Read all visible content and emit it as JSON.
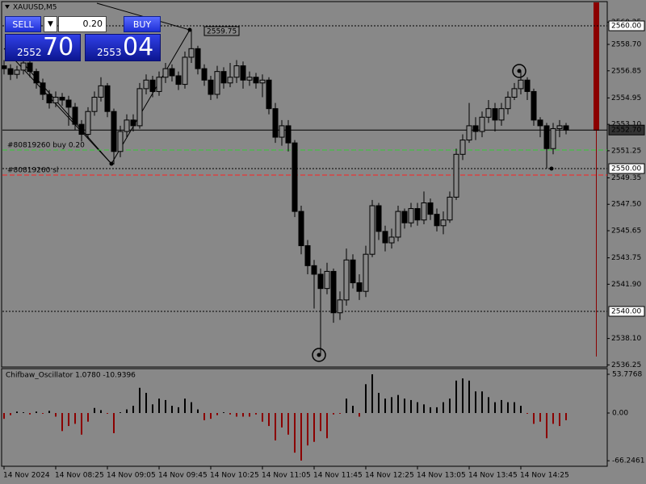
{
  "window": {
    "symbol": "XAUUSD,M5"
  },
  "trade_panel": {
    "sell": "SELL",
    "buy": "BUY",
    "volume": "0.20",
    "bid_main": "2552",
    "bid_pips": "70",
    "ask_main": "2553",
    "ask_pips": "04"
  },
  "chart_data": [
    {
      "type": "candlestick",
      "categories": [
        "14 Nov 2024",
        null,
        null,
        null,
        null,
        null,
        null,
        null,
        "14 Nov 08:25",
        null,
        null,
        null,
        null,
        null,
        null,
        null,
        "14 Nov 09:05",
        null,
        null,
        null,
        null,
        null,
        null,
        null,
        "14 Nov 09:45",
        null,
        null,
        null,
        null,
        null,
        null,
        null,
        "14 Nov 10:25",
        null,
        null,
        null,
        null,
        null,
        null,
        null,
        "14 Nov 11:05",
        null,
        null,
        null,
        null,
        null,
        null,
        null,
        "14 Nov 11:45",
        null,
        null,
        null,
        null,
        null,
        null,
        null,
        "14 Nov 12:25",
        null,
        null,
        null,
        null,
        null,
        null,
        null,
        "14 Nov 13:05",
        null,
        null,
        null,
        null,
        null,
        null,
        null,
        "14 Nov 13:45",
        null,
        null,
        null,
        null,
        null,
        null,
        null,
        "14 Nov 14:25",
        null,
        null,
        null,
        null,
        null,
        null,
        null
      ],
      "open": [
        2557.2,
        2557.0,
        2556.6,
        2556.9,
        2557.4,
        2556.8,
        2556.0,
        2555.2,
        2554.6,
        2555.0,
        2554.8,
        2554.3,
        2553.1,
        2552.4,
        2554.0,
        2555.0,
        2555.8,
        2554.0,
        2551.2,
        2552.6,
        2553.4,
        2553.0,
        2555.6,
        2556.2,
        2555.4,
        2556.4,
        2557.0,
        2556.5,
        2555.9,
        2557.8,
        2558.4,
        2557.0,
        2556.2,
        2555.2,
        2556.8,
        2556.0,
        2556.4,
        2557.2,
        2556.2,
        2556.4,
        2556.0,
        2556.2,
        2554.2,
        2552.2,
        2553.0,
        2551.8,
        2547.0,
        2544.6,
        2543.2,
        2542.6,
        2541.6,
        2542.8,
        2539.9,
        2540.8,
        2543.6,
        2542.0,
        2541.4,
        2544.0,
        2547.4,
        2545.6,
        2544.8,
        2545.2,
        2547.0,
        2546.2,
        2547.2,
        2546.4,
        2547.6,
        2546.8,
        2546.0,
        2546.4,
        2548.0,
        2551.0,
        2552.0,
        2553.0,
        2552.6,
        2553.6,
        2554.2,
        2553.4,
        2554.2,
        2555.0,
        2555.6,
        2556.2,
        2555.4,
        2553.4,
        2553.0,
        2551.4,
        2552.8,
        2553.0
      ],
      "high": [
        2557.6,
        2557.3,
        2557.2,
        2557.8,
        2557.7,
        2557.0,
        2556.3,
        2555.5,
        2555.4,
        2555.3,
        2555.1,
        2554.6,
        2553.4,
        2554.3,
        2555.4,
        2556.4,
        2556.0,
        2554.2,
        2553.0,
        2553.8,
        2553.8,
        2556.0,
        2556.6,
        2556.5,
        2556.8,
        2557.4,
        2557.3,
        2556.8,
        2558.2,
        2559.75,
        2558.6,
        2557.3,
        2556.5,
        2557.2,
        2557.1,
        2557.4,
        2557.6,
        2557.5,
        2556.8,
        2556.7,
        2556.6,
        2556.4,
        2554.6,
        2553.4,
        2553.4,
        2552.0,
        2547.4,
        2545.0,
        2543.6,
        2543.0,
        2543.4,
        2543.0,
        2541.4,
        2544.4,
        2544.0,
        2542.6,
        2544.6,
        2547.8,
        2547.6,
        2546.0,
        2545.8,
        2547.4,
        2547.2,
        2547.6,
        2547.6,
        2548.4,
        2547.9,
        2547.2,
        2547.0,
        2548.4,
        2551.4,
        2552.4,
        2554.6,
        2553.6,
        2554.0,
        2554.8,
        2554.6,
        2554.6,
        2555.4,
        2556.0,
        2556.8,
        2556.4,
        2555.6,
        2553.6,
        2553.2,
        2553.2,
        2553.4,
        2553.2
      ],
      "low": [
        2556.6,
        2556.2,
        2556.3,
        2556.6,
        2556.4,
        2555.6,
        2554.8,
        2554.2,
        2554.3,
        2554.4,
        2553.0,
        2552.7,
        2551.9,
        2552.1,
        2553.7,
        2554.7,
        2553.6,
        2550.3,
        2550.8,
        2552.2,
        2552.6,
        2552.8,
        2555.2,
        2555.0,
        2555.1,
        2556.0,
        2556.1,
        2555.5,
        2555.6,
        2557.4,
        2556.6,
        2555.8,
        2554.8,
        2554.9,
        2555.6,
        2555.7,
        2556.0,
        2555.6,
        2555.8,
        2555.6,
        2555.0,
        2553.8,
        2551.8,
        2551.6,
        2551.2,
        2546.6,
        2544.0,
        2542.6,
        2540.2,
        2536.9,
        2541.2,
        2539.2,
        2539.4,
        2540.4,
        2541.6,
        2540.8,
        2541.0,
        2543.8,
        2545.0,
        2544.2,
        2544.4,
        2544.9,
        2545.8,
        2545.9,
        2546.0,
        2546.1,
        2546.4,
        2545.6,
        2545.4,
        2546.2,
        2547.8,
        2550.6,
        2551.8,
        2552.0,
        2552.2,
        2553.2,
        2552.6,
        2553.0,
        2553.8,
        2554.8,
        2555.2,
        2554.8,
        2553.0,
        2552.2,
        2550.0,
        2551.0,
        2552.2,
        2552.4
      ],
      "close": [
        2557.0,
        2556.6,
        2556.9,
        2557.4,
        2556.8,
        2556.0,
        2555.2,
        2554.6,
        2555.0,
        2554.8,
        2554.3,
        2553.1,
        2552.4,
        2554.0,
        2555.0,
        2555.8,
        2554.0,
        2551.2,
        2552.6,
        2553.4,
        2553.0,
        2555.6,
        2556.2,
        2555.4,
        2556.4,
        2557.0,
        2556.5,
        2555.9,
        2557.8,
        2558.4,
        2557.0,
        2556.2,
        2555.2,
        2556.8,
        2556.0,
        2556.4,
        2557.2,
        2556.2,
        2556.4,
        2556.0,
        2556.2,
        2554.2,
        2552.2,
        2553.0,
        2551.8,
        2547.0,
        2544.6,
        2543.2,
        2542.6,
        2541.6,
        2542.8,
        2539.9,
        2540.8,
        2543.6,
        2542.0,
        2541.4,
        2544.0,
        2547.4,
        2545.6,
        2544.8,
        2545.2,
        2547.0,
        2546.2,
        2547.2,
        2546.4,
        2547.6,
        2546.8,
        2546.0,
        2546.4,
        2548.0,
        2551.0,
        2552.0,
        2553.0,
        2552.6,
        2553.6,
        2554.2,
        2553.4,
        2554.2,
        2555.0,
        2555.6,
        2556.2,
        2555.4,
        2553.4,
        2553.0,
        2551.4,
        2552.8,
        2553.0,
        2552.7
      ],
      "up_color": "#888888",
      "down_color": "#000000",
      "ylim": [
        2536.1,
        2561.64
      ],
      "yticks": [
        2560.25,
        {
          "value": 2558.7,
          "label": "2558.70"
        },
        2556.85,
        2554.95,
        {
          "value": 2553.1,
          "label": "2553.10"
        },
        2551.25,
        2549.35,
        {
          "value": 2547.5,
          "label": "2547.50"
        },
        2545.65,
        2543.75,
        {
          "value": 2541.9,
          "label": "2541.90"
        },
        {
          "value": 2538.1,
          "label": "2538.10"
        },
        2536.25
      ],
      "levels": [
        {
          "value": 2560,
          "label": "2560.00",
          "style": "dotted"
        },
        {
          "value": 2552.7,
          "label": "2552.70",
          "style": "solid"
        },
        {
          "value": 2550,
          "label": "2550.00",
          "style": "dotted"
        },
        {
          "value": 2540,
          "label": "2540.00",
          "style": "dotted"
        }
      ],
      "order_lines": [
        {
          "value": 2551.3,
          "label": "#80819260 buy 0.20",
          "color": "#33cc33"
        },
        {
          "value": 2549.55,
          "label": "#80819260 sl",
          "color": "#ff2020"
        }
      ],
      "price_label": "2559.75"
    },
    {
      "type": "bar",
      "title": "Chifbaw_Oscillator 1.0780 -10.9396",
      "values": [
        -8,
        -3,
        2,
        1,
        -2,
        2,
        -1,
        3,
        -5,
        -25,
        -18,
        -15,
        -30,
        -12,
        7,
        4,
        -1,
        -28,
        1,
        5,
        10,
        35,
        28,
        12,
        20,
        18,
        10,
        8,
        20,
        15,
        5,
        -10,
        -8,
        -3,
        1,
        -2,
        -5,
        -5,
        -5,
        -2,
        -12,
        -18,
        -38,
        -20,
        -30,
        -55,
        -66,
        -45,
        -40,
        -25,
        -35,
        -2,
        -1,
        20,
        10,
        -5,
        40,
        53.7768,
        28,
        20,
        22,
        25,
        20,
        18,
        15,
        12,
        8,
        8,
        15,
        20,
        45,
        48,
        45,
        30,
        30,
        22,
        15,
        18,
        15,
        15,
        10,
        -1,
        -15,
        -12,
        -35,
        -15,
        -18,
        -10
      ],
      "pos_color": "#000000",
      "neg_color": "#8b0000",
      "ylim": [
        -73.9,
        61.6
      ],
      "yticks": [
        53.7768,
        {
          "value": 0,
          "label": "0.00"
        },
        -66.2461
      ]
    }
  ]
}
